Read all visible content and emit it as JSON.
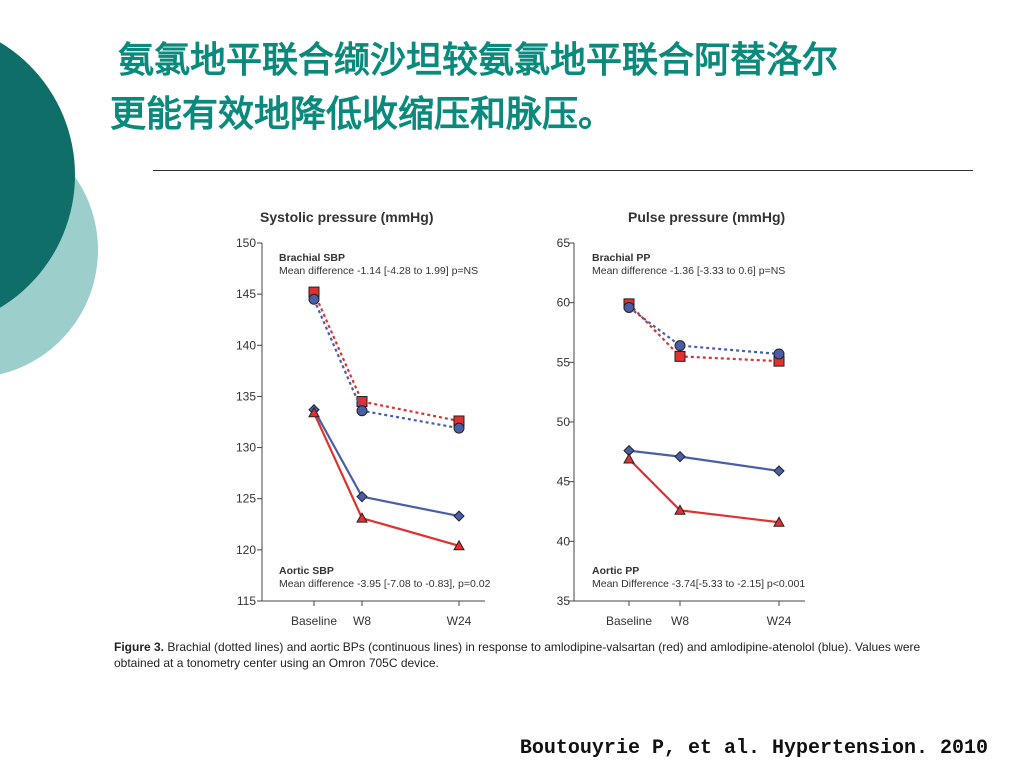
{
  "slide": {
    "title_line1": "氨氯地平联合缬沙坦较氨氯地平联合阿替洛尔",
    "title_line2": "更能有效地降低收缩压和脉压。",
    "caption_label": "Figure 3.",
    "caption_text": " Brachial (dotted lines) and aortic BPs (continuous lines) in response to amlodipine-valsartan (red) and amlodipine-atenolol (blue). Values were obtained at a tonometry center using an Omron 705C device.",
    "citation": "Boutouyrie P, et al. Hypertension. 2010"
  },
  "colors": {
    "title": "#0a8a7c",
    "deco_dark": "#0f6e68",
    "deco_light": "#9ccfcc",
    "red": "#e03030",
    "blue": "#4a5ea8"
  },
  "chart_data": [
    {
      "type": "line",
      "title": "Systolic pressure (mmHg)",
      "categories": [
        "Baseline",
        "W8",
        "W24"
      ],
      "ylim": [
        115,
        150
      ],
      "yticks": [
        115,
        120,
        125,
        130,
        135,
        140,
        145,
        150
      ],
      "grid": false,
      "annotations": [
        {
          "title": "Brachial SBP",
          "text": "Mean difference -1.14 [-4.28 to 1.99] p=NS",
          "position": "top"
        },
        {
          "title": "Aortic SBP",
          "text": "Mean difference -3.95 [-7.08 to -0.83], p=0.02",
          "position": "bottom"
        }
      ],
      "series": [
        {
          "group": "brachial",
          "drug": "amlodipine-valsartan",
          "color": "red",
          "dash": true,
          "marker": "square",
          "values": [
            145.2,
            134.5,
            132.6
          ]
        },
        {
          "group": "brachial",
          "drug": "amlodipine-atenolol",
          "color": "blue",
          "dash": true,
          "marker": "circle",
          "values": [
            144.5,
            133.6,
            131.9
          ]
        },
        {
          "group": "aortic",
          "drug": "amlodipine-atenolol",
          "color": "blue",
          "dash": false,
          "marker": "diamond",
          "values": [
            133.7,
            125.2,
            123.3
          ]
        },
        {
          "group": "aortic",
          "drug": "amlodipine-valsartan",
          "color": "red",
          "dash": false,
          "marker": "triangle",
          "values": [
            133.4,
            123.1,
            120.4
          ]
        }
      ]
    },
    {
      "type": "line",
      "title": "Pulse pressure (mmHg)",
      "categories": [
        "Baseline",
        "W8",
        "W24"
      ],
      "ylim": [
        35,
        65
      ],
      "yticks": [
        35,
        40,
        45,
        50,
        55,
        60,
        65
      ],
      "grid": false,
      "annotations": [
        {
          "title": "Brachial PP",
          "text": "Mean difference -1.36 [-3.33 to 0.6] p=NS",
          "position": "top"
        },
        {
          "title": "Aortic PP",
          "text": "Mean Difference -3.74[-5.33 to -2.15] p<0.001",
          "position": "bottom"
        }
      ],
      "series": [
        {
          "group": "brachial",
          "drug": "amlodipine-valsartan",
          "color": "red",
          "dash": true,
          "marker": "square",
          "values": [
            59.9,
            55.5,
            55.1
          ]
        },
        {
          "group": "brachial",
          "drug": "amlodipine-atenolol",
          "color": "blue",
          "dash": true,
          "marker": "circle",
          "values": [
            59.6,
            56.4,
            55.7
          ]
        },
        {
          "group": "aortic",
          "drug": "amlodipine-atenolol",
          "color": "blue",
          "dash": false,
          "marker": "diamond",
          "values": [
            47.6,
            47.1,
            45.9
          ]
        },
        {
          "group": "aortic",
          "drug": "amlodipine-valsartan",
          "color": "red",
          "dash": false,
          "marker": "triangle",
          "values": [
            46.9,
            42.6,
            41.6
          ]
        }
      ]
    }
  ]
}
